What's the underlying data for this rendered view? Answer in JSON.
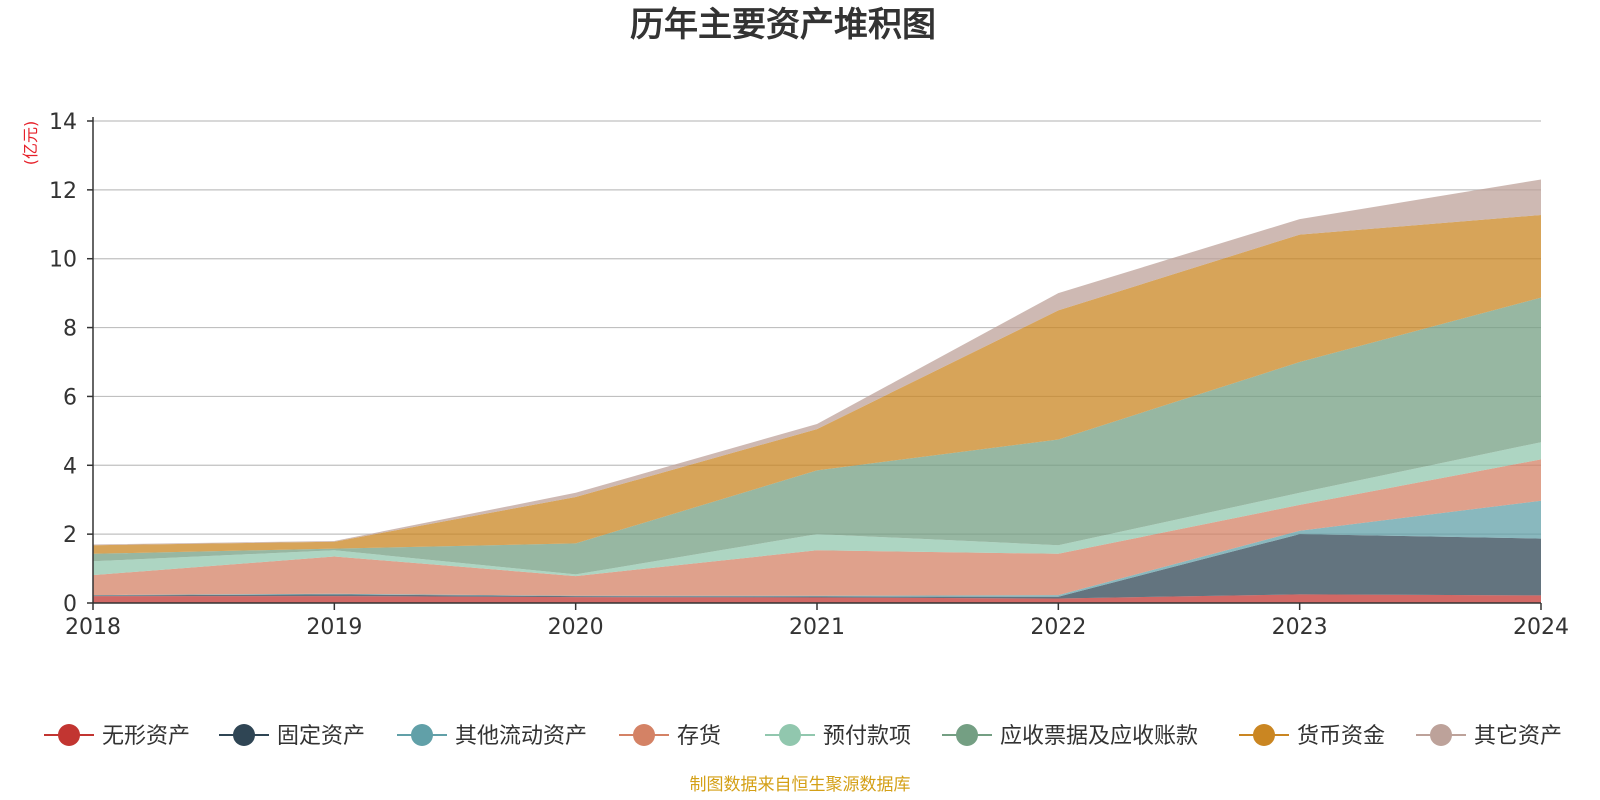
{
  "chart_data": {
    "type": "area",
    "stacked": true,
    "title": "历年主要资产堆积图",
    "ylabel": "(亿元)",
    "x": [
      "2018",
      "2019",
      "2020",
      "2021",
      "2022",
      "2023",
      "2024"
    ],
    "ylim": [
      0,
      14
    ],
    "yticks": [
      "0",
      "2",
      "4",
      "6",
      "8",
      "10",
      "12",
      "14"
    ],
    "grid": true,
    "legend_position": "bottom",
    "series": [
      {
        "name": "无形资产",
        "color": "#c23531",
        "values": [
          0.2,
          0.2,
          0.17,
          0.16,
          0.13,
          0.25,
          0.22
        ]
      },
      {
        "name": "固定资产",
        "color": "#2f4554",
        "values": [
          0.02,
          0.05,
          0.03,
          0.03,
          0.05,
          1.75,
          1.65
        ]
      },
      {
        "name": "其他流动资产",
        "color": "#61a0a8",
        "values": [
          0.01,
          0.02,
          0.01,
          0.02,
          0.05,
          0.1,
          1.1
        ]
      },
      {
        "name": "存货",
        "color": "#d48265",
        "values": [
          0.58,
          1.08,
          0.57,
          1.32,
          1.2,
          0.75,
          1.2
        ]
      },
      {
        "name": "预付款项",
        "color": "#91c7ae",
        "values": [
          0.4,
          0.18,
          0.05,
          0.47,
          0.25,
          0.35,
          0.5
        ]
      },
      {
        "name": "应收票据及应收账款",
        "color": "#749f83",
        "values": [
          0.22,
          0.05,
          0.9,
          1.85,
          3.07,
          3.8,
          4.2
        ]
      },
      {
        "name": "货币资金",
        "color": "#ca8622",
        "values": [
          0.25,
          0.2,
          1.35,
          1.2,
          3.75,
          3.7,
          2.4
        ]
      },
      {
        "name": "其它资产",
        "color": "#bda29a",
        "values": [
          0.02,
          0.02,
          0.12,
          0.15,
          0.5,
          0.45,
          1.03
        ]
      }
    ]
  },
  "footer": {
    "source_text": "制图数据来自恒生聚源数据库",
    "source_color": "#d4a017"
  },
  "colors": {
    "unit_label": "#e6212a",
    "axis": "#333333",
    "grid": "#c0c0c0"
  }
}
